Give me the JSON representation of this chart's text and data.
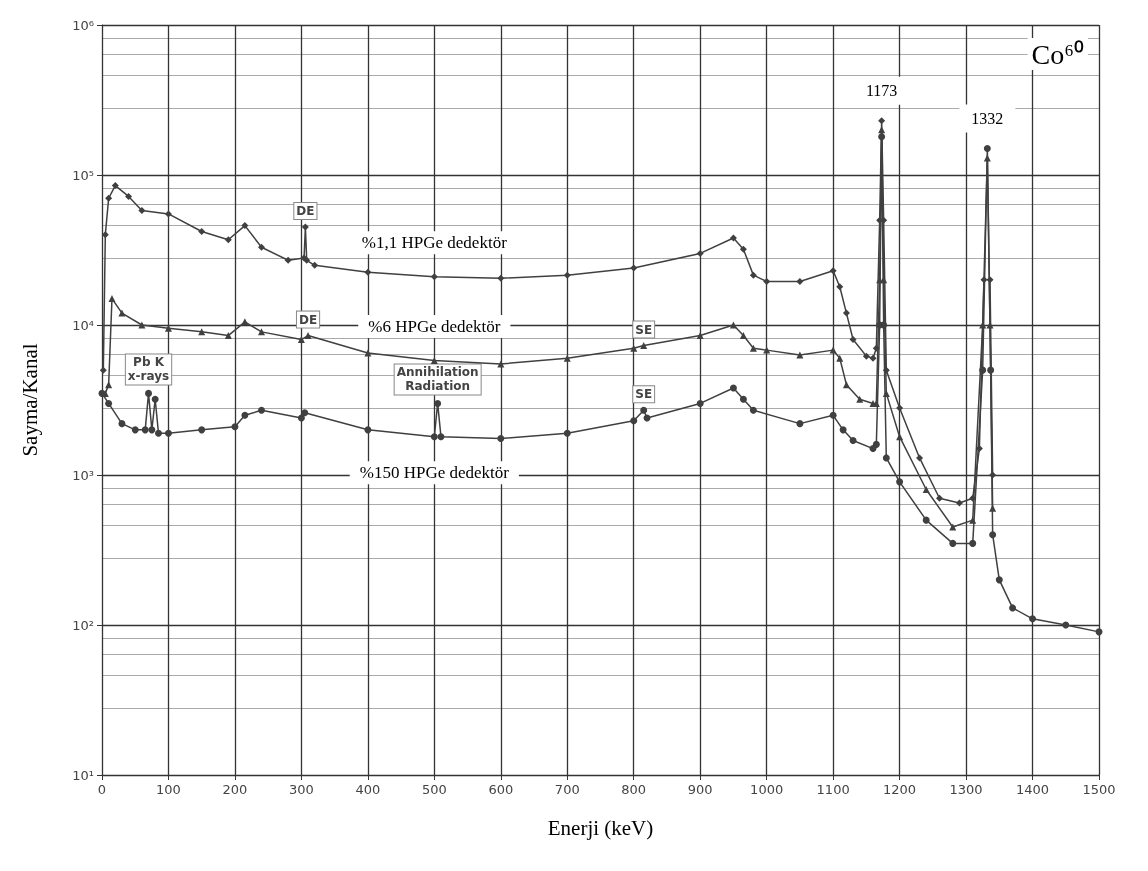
{
  "chart_data": {
    "type": "line",
    "xlabel": "Enerji (keV)",
    "ylabel": "Sayma/Kanal",
    "log": "y",
    "grid": true,
    "legend": false,
    "xlim": [
      0,
      1500
    ],
    "xticks": [
      0,
      100,
      200,
      300,
      400,
      500,
      600,
      700,
      800,
      900,
      1000,
      1100,
      1200,
      1300,
      1400,
      1500
    ],
    "ylim": [
      10,
      1000000
    ],
    "yticks": [
      {
        "value": 10,
        "label": "10¹"
      },
      {
        "value": 100,
        "label": "10²"
      },
      {
        "value": 1000,
        "label": "10³"
      },
      {
        "value": 10000,
        "label": "10⁴"
      },
      {
        "value": 100000,
        "label": "10⁵"
      },
      {
        "value": 1000000,
        "label": "10⁶"
      }
    ],
    "series": [
      {
        "name": "%1,1 HPGe dedektör",
        "color": "#404040",
        "marker": "diamond",
        "x": [
          2,
          5,
          10,
          20,
          40,
          60,
          100,
          150,
          190,
          215,
          240,
          280,
          304,
          306,
          308,
          320,
          400,
          500,
          600,
          700,
          800,
          900,
          950,
          965,
          980,
          1000,
          1050,
          1100,
          1110,
          1120,
          1130,
          1150,
          1160,
          1165,
          1170,
          1173,
          1176,
          1180,
          1200,
          1230,
          1260,
          1290,
          1310,
          1320,
          1327,
          1332,
          1336,
          1340
        ],
        "values": [
          5000,
          40000,
          70000,
          85000,
          72000,
          58000,
          55000,
          42000,
          37000,
          46000,
          33000,
          27000,
          28000,
          45000,
          27000,
          25000,
          22500,
          21000,
          20500,
          21500,
          24000,
          30000,
          38000,
          32000,
          21500,
          19500,
          19500,
          23000,
          18000,
          12000,
          8000,
          6200,
          6000,
          7000,
          50000,
          230000,
          50000,
          5000,
          2800,
          1300,
          700,
          650,
          700,
          1500,
          20000,
          null,
          20000,
          1000
        ]
      },
      {
        "name": "%6 HPGe dedektör",
        "color": "#404040",
        "marker": "triangle",
        "x": [
          5,
          10,
          15,
          30,
          60,
          100,
          150,
          190,
          215,
          240,
          300,
          310,
          400,
          500,
          600,
          700,
          800,
          815,
          900,
          950,
          965,
          980,
          1000,
          1050,
          1100,
          1110,
          1120,
          1140,
          1160,
          1165,
          1170,
          1173,
          1176,
          1180,
          1200,
          1240,
          1280,
          1310,
          1325,
          1332,
          1336,
          1340
        ],
        "values": [
          3500,
          4000,
          15000,
          12000,
          10000,
          9500,
          9000,
          8500,
          10500,
          9000,
          8000,
          8500,
          6500,
          5800,
          5500,
          6000,
          7000,
          7300,
          8500,
          10000,
          8500,
          7000,
          6800,
          6300,
          6800,
          6000,
          4000,
          3200,
          3000,
          3000,
          20000,
          200000,
          20000,
          3500,
          1800,
          800,
          450,
          500,
          10000,
          130000,
          10000,
          600
        ]
      },
      {
        "name": "%150 HPGe dedektör",
        "color": "#404040",
        "marker": "circle",
        "x": [
          0,
          10,
          30,
          50,
          65,
          70,
          75,
          80,
          85,
          100,
          150,
          200,
          215,
          240,
          300,
          305,
          400,
          500,
          505,
          510,
          600,
          700,
          800,
          815,
          820,
          900,
          950,
          965,
          980,
          1050,
          1100,
          1115,
          1130,
          1160,
          1165,
          1170,
          1173,
          1176,
          1180,
          1200,
          1240,
          1280,
          1310,
          1325,
          1332,
          1337,
          1340,
          1350,
          1370,
          1400,
          1450,
          1500
        ],
        "values": [
          3500,
          3000,
          2200,
          2000,
          2000,
          3500,
          2000,
          3200,
          1900,
          1900,
          2000,
          2100,
          2500,
          2700,
          2400,
          2600,
          2000,
          1800,
          3000,
          1800,
          1750,
          1900,
          2300,
          2700,
          2400,
          3000,
          3800,
          3200,
          2700,
          2200,
          2500,
          2000,
          1700,
          1500,
          1600,
          10000,
          180000,
          10000,
          1300,
          900,
          500,
          350,
          350,
          5000,
          150000,
          5000,
          400,
          200,
          130,
          110,
          100,
          90
        ]
      }
    ],
    "annotations": [
      "Co⁶⁰",
      {
        "text": "1173",
        "x": 1173,
        "y": 230000
      },
      {
        "text": "1332",
        "x": 1332,
        "y": 150000
      },
      {
        "text": "DE",
        "x": 306,
        "y": 45000
      },
      {
        "text": "DE",
        "x": 310,
        "y": 8500
      },
      {
        "text": "SE",
        "x": 815,
        "y": 7300
      },
      {
        "text": "SE",
        "x": 815,
        "y": 2700
      },
      {
        "text": "Pb K\nx-rays",
        "x": 70,
        "y": 3500
      },
      {
        "text": "Annihilation\nRadiation",
        "x": 505,
        "y": 3000
      }
    ]
  }
}
